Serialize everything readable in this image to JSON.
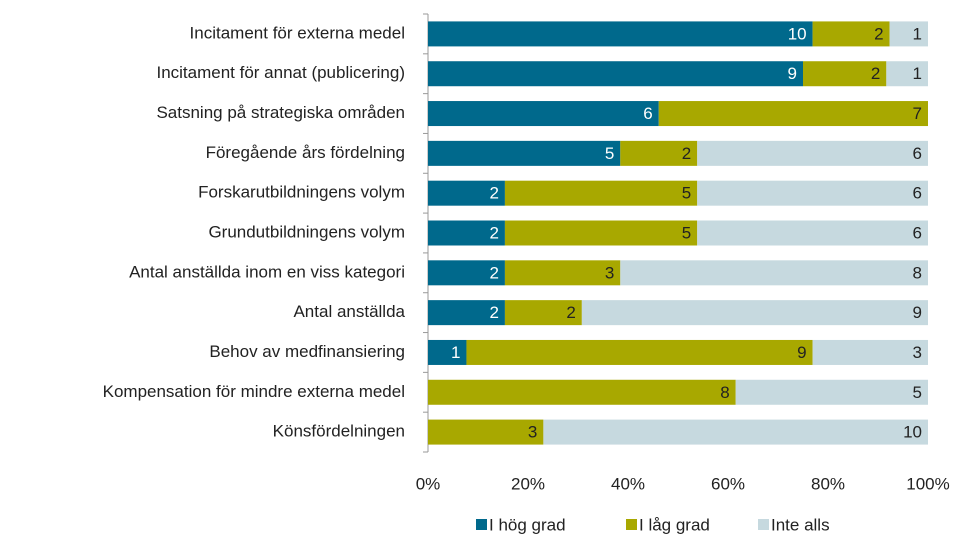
{
  "chart_data": {
    "type": "bar",
    "orientation": "horizontal",
    "stacked": "percent",
    "categories": [
      "Incitament för externa medel",
      "Incitament för annat (publicering)",
      "Satsning på strategiska områden",
      "Föregående års fördelning",
      "Forskarutbildningens volym",
      "Grundutbildningens volym",
      "Antal anställda inom en viss kategori",
      "Antal anställda",
      "Behov av medfinansiering",
      "Kompensation för mindre externa medel",
      "Könsfördelningen"
    ],
    "series": [
      {
        "name": "I hög grad",
        "color": "#00698c",
        "label_color": "#ffffff",
        "values": [
          10,
          9,
          6,
          5,
          2,
          2,
          2,
          2,
          1,
          null,
          null
        ]
      },
      {
        "name": "I låg grad",
        "color": "#a8a800",
        "label_color": "#222222",
        "values": [
          2,
          2,
          7,
          2,
          5,
          5,
          3,
          2,
          9,
          8,
          3
        ]
      },
      {
        "name": "Inte alls",
        "color": "#c6d9df",
        "label_color": "#222222",
        "values": [
          1,
          1,
          null,
          6,
          6,
          6,
          8,
          9,
          3,
          5,
          10
        ]
      }
    ],
    "xlim": [
      0,
      100
    ],
    "xticks": [
      {
        "value": 0,
        "label": "0%"
      },
      {
        "value": 20,
        "label": "20%"
      },
      {
        "value": 40,
        "label": "40%"
      },
      {
        "value": 60,
        "label": "60%"
      },
      {
        "value": 80,
        "label": "80%"
      },
      {
        "value": 100,
        "label": "100%"
      }
    ],
    "legend": "bottom"
  }
}
